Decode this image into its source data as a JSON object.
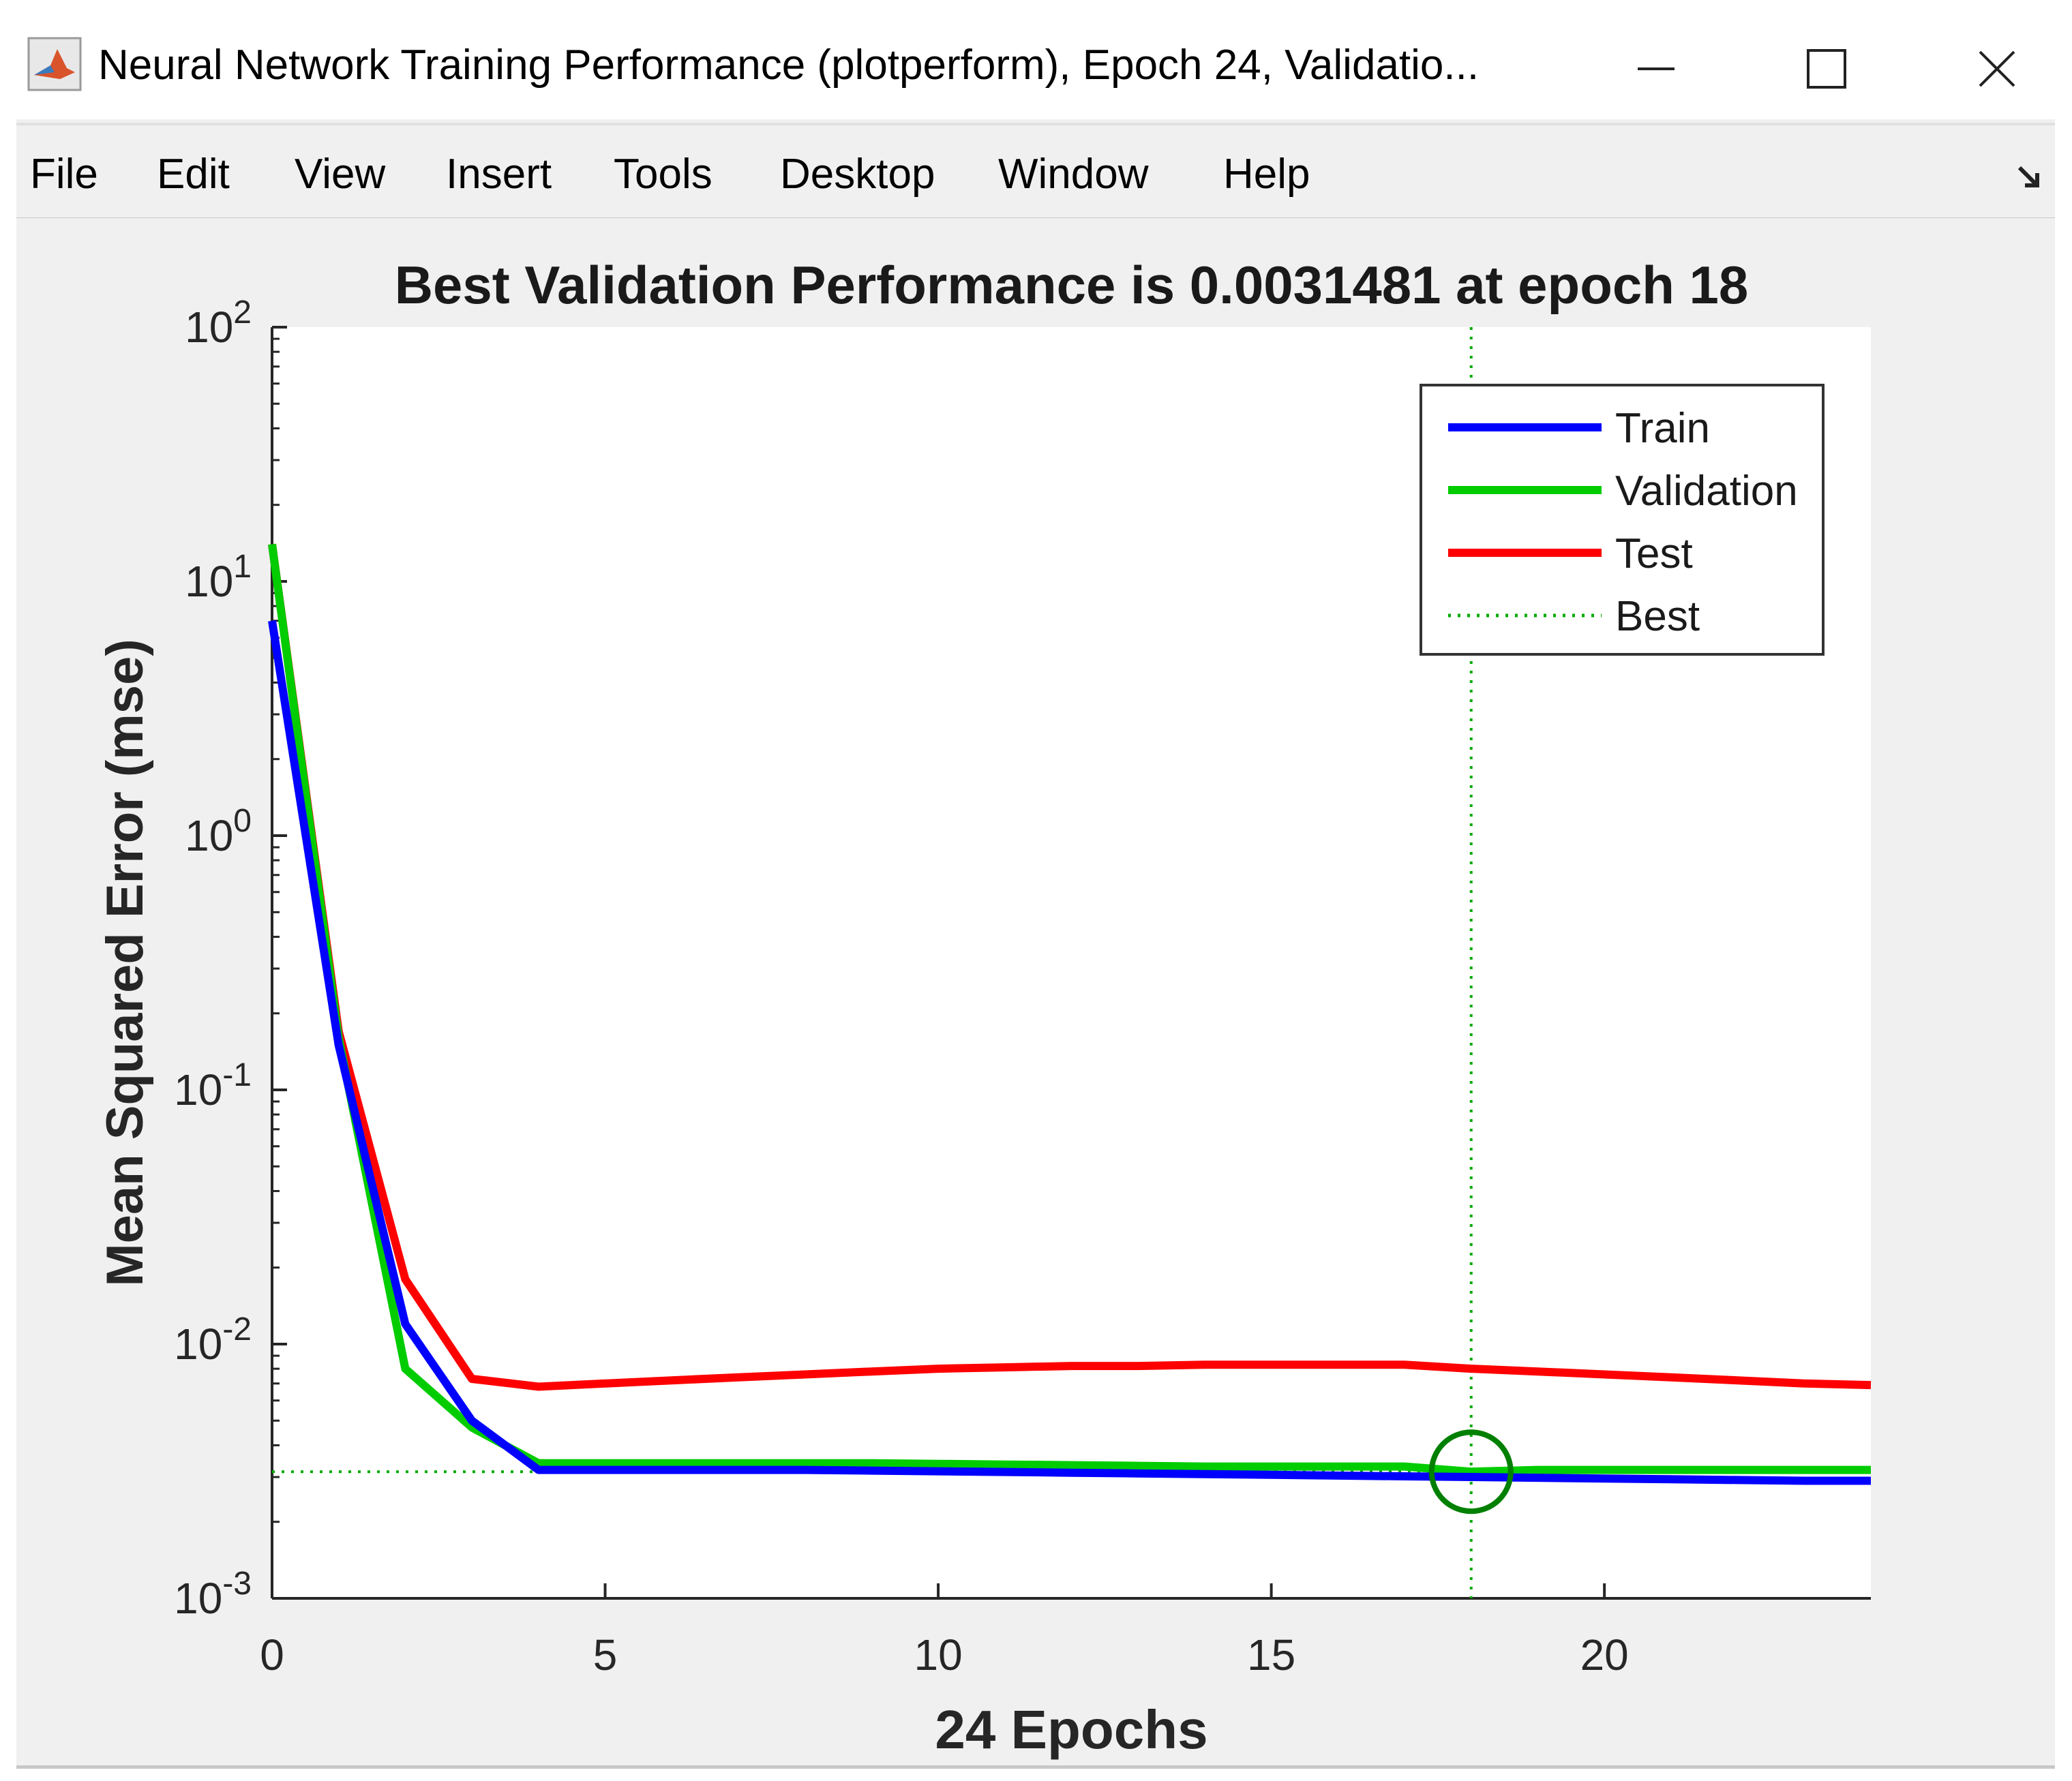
{
  "window": {
    "title": "Neural Network Training Performance (plotperform), Epoch 24, Validatio...",
    "icon": "matlab-icon",
    "controls": [
      "minimize-icon",
      "maximize-icon",
      "close-icon"
    ]
  },
  "menubar": {
    "items": [
      {
        "label": "File"
      },
      {
        "label": "Edit"
      },
      {
        "label": "View"
      },
      {
        "label": "Insert"
      },
      {
        "label": "Tools"
      },
      {
        "label": "Desktop"
      },
      {
        "label": "Window"
      },
      {
        "label": "Help"
      }
    ],
    "undock_icon": "undock-arrow-icon"
  },
  "chart_data": {
    "type": "line",
    "title": "Best Validation Performance is 0.0031481 at epoch 18",
    "xlabel": "24 Epochs",
    "ylabel": "Mean Squared Error  (mse)",
    "yscale": "log",
    "xlim": [
      0,
      24
    ],
    "ylim": [
      0.001,
      100
    ],
    "xticks": [
      0,
      5,
      10,
      15,
      20
    ],
    "yticks": [
      {
        "value": 100,
        "base": "10",
        "exp": "2"
      },
      {
        "value": 10,
        "base": "10",
        "exp": "1"
      },
      {
        "value": 1,
        "base": "10",
        "exp": "0"
      },
      {
        "value": 0.1,
        "base": "10",
        "exp": "-1"
      },
      {
        "value": 0.01,
        "base": "10",
        "exp": "-2"
      },
      {
        "value": 0.001,
        "base": "10",
        "exp": "-3"
      }
    ],
    "x": [
      0,
      1,
      2,
      3,
      4,
      5,
      6,
      7,
      8,
      9,
      10,
      11,
      12,
      13,
      14,
      15,
      16,
      17,
      18,
      19,
      20,
      21,
      22,
      23,
      24
    ],
    "series": [
      {
        "name": "Train",
        "color": "#0000ff",
        "values": [
          7,
          0.15,
          0.012,
          0.005,
          0.0032,
          0.0032,
          0.0032,
          0.0032,
          0.0032,
          0.00318,
          0.00316,
          0.00314,
          0.00312,
          0.0031,
          0.00308,
          0.00306,
          0.00304,
          0.00302,
          0.003,
          0.00298,
          0.00296,
          0.00294,
          0.00292,
          0.0029,
          0.0029
        ]
      },
      {
        "name": "Validation",
        "color": "#00cc00",
        "values": [
          14,
          0.16,
          0.008,
          0.0047,
          0.0034,
          0.0034,
          0.0034,
          0.0034,
          0.0034,
          0.0034,
          0.00338,
          0.00336,
          0.00334,
          0.00332,
          0.0033,
          0.0033,
          0.0033,
          0.0033,
          0.0031481,
          0.0032,
          0.0032,
          0.0032,
          0.0032,
          0.0032,
          0.0032
        ]
      },
      {
        "name": "Test",
        "color": "#ff0000",
        "values": [
          14,
          0.17,
          0.018,
          0.0073,
          0.0068,
          0.007,
          0.0072,
          0.0074,
          0.0076,
          0.0078,
          0.008,
          0.0081,
          0.0082,
          0.0082,
          0.0083,
          0.0083,
          0.0083,
          0.0083,
          0.008,
          0.0078,
          0.0076,
          0.0074,
          0.0072,
          0.007,
          0.0069
        ]
      }
    ],
    "best": {
      "name": "Best",
      "epoch": 18,
      "value": 0.0031481,
      "color": "#00aa00"
    },
    "legend": {
      "position": "top-right",
      "entries": [
        "Train",
        "Validation",
        "Test",
        "Best"
      ]
    },
    "grid": false
  }
}
